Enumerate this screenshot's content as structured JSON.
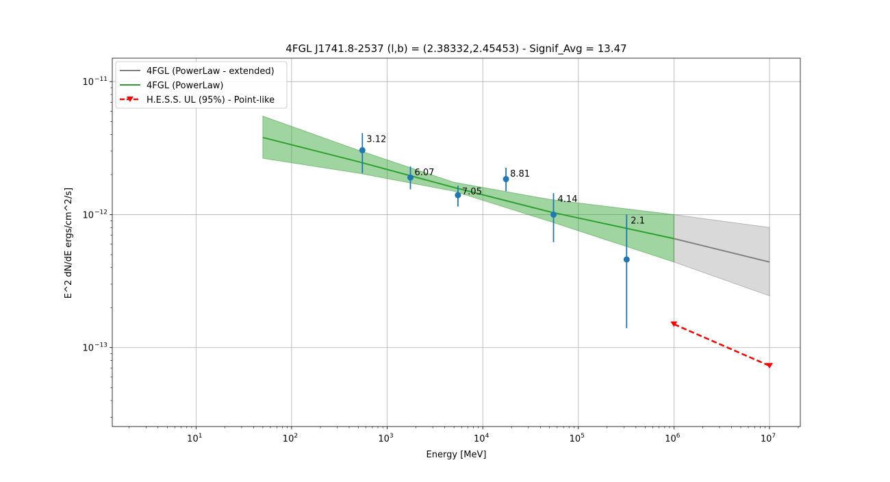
{
  "chart_data": {
    "type": "scatter",
    "title": "4FGL J1741.8-2537  (l,b) = (2.38332,2.45453) - Signif_Avg = 13.47",
    "xlabel": "Energy [MeV]",
    "ylabel": "E^2 dN/dE ergs/cm^2/s]",
    "xscale": "log",
    "yscale": "log",
    "xlim": [
      1.33,
      21000000
    ],
    "ylim": [
      2.55e-14,
      1.5e-11
    ],
    "grid": true,
    "legend_position": "top-left",
    "x_ticks": [
      {
        "base": "10",
        "exp": "1",
        "value": 10
      },
      {
        "base": "10",
        "exp": "2",
        "value": 100
      },
      {
        "base": "10",
        "exp": "3",
        "value": 1000
      },
      {
        "base": "10",
        "exp": "4",
        "value": 10000
      },
      {
        "base": "10",
        "exp": "5",
        "value": 100000
      },
      {
        "base": "10",
        "exp": "6",
        "value": 1000000
      },
      {
        "base": "10",
        "exp": "7",
        "value": 10000000
      }
    ],
    "y_ticks": [
      {
        "base": "10",
        "exp": "−11",
        "value": 1e-11
      },
      {
        "base": "10",
        "exp": "−12",
        "value": 1e-12
      },
      {
        "base": "10",
        "exp": "−13",
        "value": 1e-13
      }
    ],
    "legend": [
      {
        "label": "4FGL (PowerLaw - extended)",
        "color": "#808080",
        "style": "line"
      },
      {
        "label": "4FGL (PowerLaw)",
        "color": "#2ca02c",
        "style": "line"
      },
      {
        "label": "H.E.S.S. UL (95%) - Point-like",
        "color": "#ff0000",
        "style": "dashed-triangle"
      }
    ],
    "series": [
      {
        "name": "4FGL (PowerLaw - extended)",
        "type": "line",
        "color": "#808080",
        "x": [
          1000000,
          10000000
        ],
        "y": [
          6.6e-13,
          4.4e-13
        ],
        "band_low": [
          4.4e-13,
          2.45e-13
        ],
        "band_high": [
          1e-12,
          8e-13
        ]
      },
      {
        "name": "4FGL (PowerLaw)",
        "type": "line",
        "color": "#2ca02c",
        "x": [
          50,
          500,
          5000,
          50000,
          1000000
        ],
        "y": [
          3.8e-12,
          2.5e-12,
          1.6e-12,
          1.05e-12,
          6.6e-13
        ],
        "band_low": [
          2.65e-12,
          2.05e-12,
          1.5e-12,
          8.9e-13,
          4.4e-13
        ],
        "band_high": [
          5.5e-12,
          3.05e-12,
          1.75e-12,
          1.3e-12,
          1e-12
        ]
      },
      {
        "name": "H.E.S.S. UL (95%) - Point-like",
        "type": "upper-limit",
        "color": "#ff0000",
        "x": [
          1000000,
          10000000
        ],
        "y": [
          1.5e-13,
          7.3e-14
        ]
      },
      {
        "name": "Flux points",
        "type": "errorbar",
        "color": "#1f77b4",
        "x": [
          550,
          1750,
          5500,
          17500,
          55000,
          320000
        ],
        "y": [
          3.05e-12,
          1.9e-12,
          1.4e-12,
          1.85e-12,
          1e-12,
          4.6e-13
        ],
        "y_low": [
          2.05e-12,
          1.55e-12,
          1.15e-12,
          1.5e-12,
          6.2e-13,
          1.4e-13
        ],
        "y_high": [
          4.1e-12,
          2.3e-12,
          1.65e-12,
          2.25e-12,
          1.45e-12,
          1e-12
        ],
        "labels": [
          "3.12",
          "6.07",
          "7.05",
          "8.81",
          "4.14",
          "2.1"
        ]
      }
    ]
  }
}
